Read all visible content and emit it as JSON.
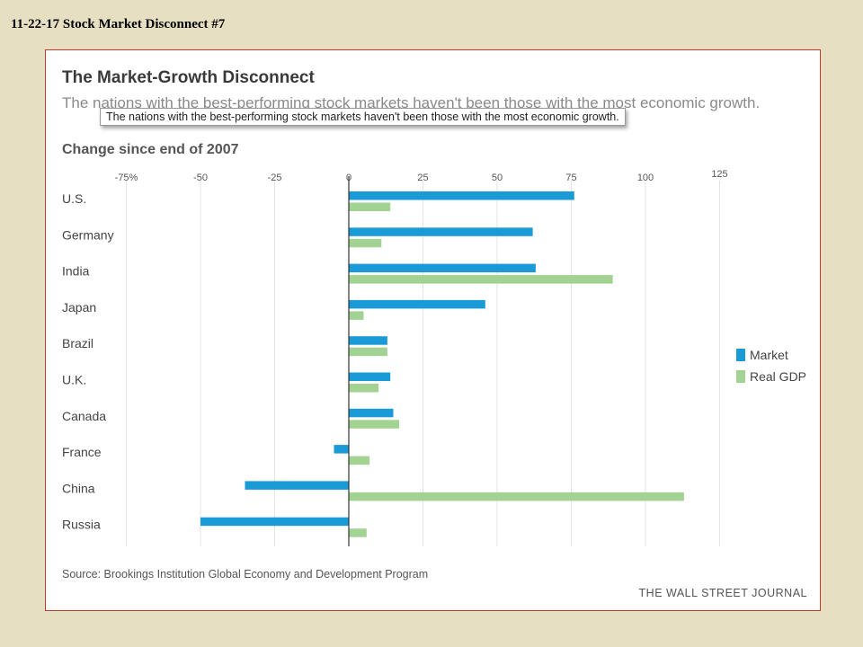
{
  "slide": {
    "title": "11-22-17 Stock Market Disconnect #7"
  },
  "source": "Source: Brookings Institution Global Economy and Development Program",
  "publisher": "THE WALL STREET JOURNAL",
  "tooltip": "The nations with the best-performing stock markets haven't been those with the most economic growth.",
  "colors": {
    "market": "#1a9bd7",
    "gdp": "#a3d393",
    "zero_line": "#333333",
    "grid": "#e3e3e3",
    "panel_border": "#c0392b"
  },
  "chart_data": {
    "type": "bar",
    "orientation": "horizontal",
    "title": "The Market-Growth Disconnect",
    "subtitle": "The nations with the best-performing stock markets haven't been those with the most economic growth.",
    "subhead": "Change since end of 2007",
    "categories": [
      "U.S.",
      "Germany",
      "India",
      "Japan",
      "Brazil",
      "U.K.",
      "Canada",
      "France",
      "China",
      "Russia"
    ],
    "series": [
      {
        "name": "Market",
        "color": "#1a9bd7",
        "values": [
          76,
          62,
          63,
          46,
          13,
          14,
          15,
          -5,
          -35,
          -50
        ]
      },
      {
        "name": "Real GDP",
        "color": "#a3d393",
        "values": [
          14,
          11,
          89,
          5,
          13,
          10,
          17,
          7,
          113,
          6
        ]
      }
    ],
    "x_ticks": [
      "-75%",
      "-50",
      "-25",
      "0",
      "25",
      "50",
      "75",
      "100",
      "125"
    ],
    "x_tick_values": [
      -75,
      -50,
      -25,
      0,
      25,
      50,
      75,
      100,
      125
    ],
    "xlim": [
      -75,
      125
    ],
    "grid": true,
    "legend_position": "right"
  }
}
